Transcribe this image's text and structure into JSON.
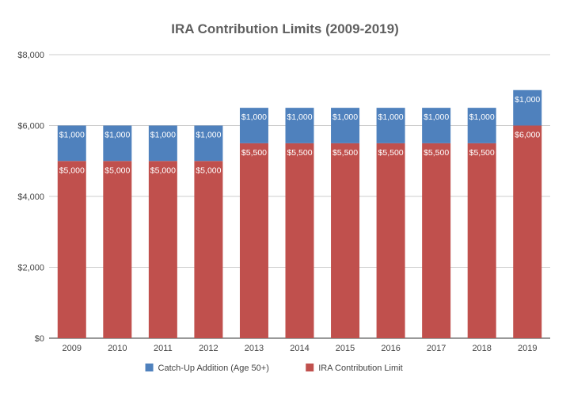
{
  "chart_data": {
    "type": "bar",
    "stacked": true,
    "title": "IRA Contribution Limits (2009-2019)",
    "xlabel": "",
    "ylabel": "",
    "categories": [
      "2009",
      "2010",
      "2011",
      "2012",
      "2013",
      "2014",
      "2015",
      "2016",
      "2017",
      "2018",
      "2019"
    ],
    "ylim": [
      0,
      8000
    ],
    "yticks": [
      0,
      2000,
      4000,
      6000,
      8000
    ],
    "ytick_labels": [
      "$0",
      "$2,000",
      "$4,000",
      "$6,000",
      "$8,000"
    ],
    "grid": true,
    "legend_position": "bottom",
    "series": [
      {
        "name": "IRA Contribution Limit",
        "color": "#c0504d",
        "values": [
          5000,
          5000,
          5000,
          5000,
          5500,
          5500,
          5500,
          5500,
          5500,
          5500,
          6000
        ],
        "labels": [
          "$5,000",
          "$5,000",
          "$5,000",
          "$5,000",
          "$5,500",
          "$5,500",
          "$5,500",
          "$5,500",
          "$5,500",
          "$5,500",
          "$6,000"
        ]
      },
      {
        "name": "Catch-Up Addition (Age 50+)",
        "color": "#4f81bd",
        "values": [
          1000,
          1000,
          1000,
          1000,
          1000,
          1000,
          1000,
          1000,
          1000,
          1000,
          1000
        ],
        "labels": [
          "$1,000",
          "$1,000",
          "$1,000",
          "$1,000",
          "$1,000",
          "$1,000",
          "$1,000",
          "$1,000",
          "$1,000",
          "$1,000",
          "$1,000"
        ]
      }
    ],
    "legend_order": [
      1,
      0
    ]
  }
}
